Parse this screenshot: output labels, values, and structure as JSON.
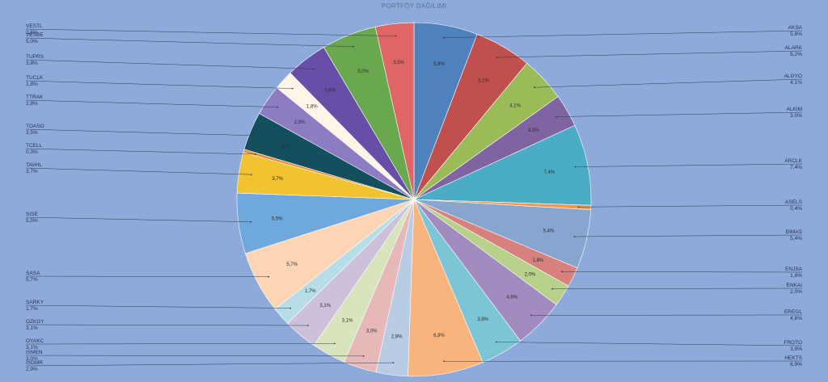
{
  "chart_data": {
    "type": "pie",
    "title": "PORTFÖY DAĞILIMI",
    "slices": [
      {
        "name": "AKSA",
        "label": "5,8%",
        "value": 5.8,
        "color": "#4f81bd"
      },
      {
        "name": "ALARK",
        "label": "5,2%",
        "value": 5.2,
        "color": "#c0504d"
      },
      {
        "name": "ALGYO",
        "label": "4,1%",
        "value": 4.1,
        "color": "#9bbb59"
      },
      {
        "name": "ALKIM",
        "label": "3,0%",
        "value": 3.0,
        "color": "#8064a2"
      },
      {
        "name": "ARCLK",
        "label": "7,4%",
        "value": 7.4,
        "color": "#4bacc6"
      },
      {
        "name": "ASELS",
        "label": "0,4%",
        "value": 0.4,
        "color": "#f79646"
      },
      {
        "name": "BIMAS",
        "label": "5,4%",
        "value": 5.4,
        "color": "#86a6cf"
      },
      {
        "name": "ENJSA",
        "label": "1,8%",
        "value": 1.8,
        "color": "#d7807e"
      },
      {
        "name": "ENKAI",
        "label": "2,0%",
        "value": 2.0,
        "color": "#b7d08a"
      },
      {
        "name": "EREGL",
        "label": "4,6%",
        "value": 4.6,
        "color": "#a28bbf"
      },
      {
        "name": "FROTO",
        "label": "3,9%",
        "value": 3.9,
        "color": "#7bc5d6"
      },
      {
        "name": "HEKTS",
        "label": "6,9%",
        "value": 6.9,
        "color": "#f9b47d"
      },
      {
        "name": "ISDMR",
        "label": "2,9%",
        "value": 2.9,
        "color": "#b8cce4"
      },
      {
        "name": "ISMEN",
        "label": "3,0%",
        "value": 3.0,
        "color": "#e6b8b7"
      },
      {
        "name": "OYAKC",
        "label": "3,1%",
        "value": 3.1,
        "color": "#d7e4bc"
      },
      {
        "name": "OZKGY",
        "label": "3,1%",
        "value": 3.1,
        "color": "#ccc0da"
      },
      {
        "name": "SARKY",
        "label": "1,7%",
        "value": 1.7,
        "color": "#b7dee8"
      },
      {
        "name": "SASA",
        "label": "5,7%",
        "value": 5.7,
        "color": "#fcd5b4"
      },
      {
        "name": "SISE",
        "label": "5,5%",
        "value": 5.5,
        "color": "#6fa8dc"
      },
      {
        "name": "TAVHL",
        "label": "3,7%",
        "value": 3.7,
        "color": "#f1c232"
      },
      {
        "name": "TCELL",
        "label": "0,3%",
        "value": 0.3,
        "color": "#e69138"
      },
      {
        "name": "TOASO",
        "label": "3,5%",
        "value": 3.5,
        "color": "#134f5c"
      },
      {
        "name": "TTRAK",
        "label": "2,8%",
        "value": 2.8,
        "color": "#8e7cc3"
      },
      {
        "name": "TUCLK",
        "label": "1,8%",
        "value": 1.8,
        "color": "#fdf5e6"
      },
      {
        "name": "TUPRS",
        "label": "3,8%",
        "value": 3.8,
        "color": "#674ea7"
      },
      {
        "name": "VESBE",
        "label": "5,0%",
        "value": 5.0,
        "color": "#6aa84f"
      },
      {
        "name": "VESTL",
        "label": "3,5%",
        "value": 3.5,
        "color": "#e06666"
      }
    ]
  }
}
